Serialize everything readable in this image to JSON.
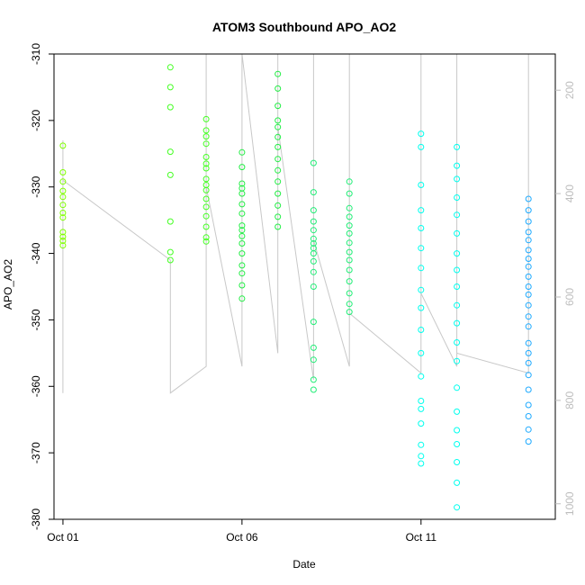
{
  "chart_data": {
    "type": "scatter",
    "title": "ATOM3 Southbound APO_AO2",
    "xlabel": "Date",
    "ylabel": "APO_AO2",
    "x_start": "Sep 30 18:00",
    "x_end": "Oct 14 18:00",
    "xlim": [
      "2016-09-30T18:00",
      "2016-10-14T18:00"
    ],
    "ylim": [
      -380,
      -310
    ],
    "x_ticks": [
      {
        "date": "2016-10-01T00:00",
        "label": "Oct 01"
      },
      {
        "date": "2016-10-06T00:00",
        "label": "Oct 06"
      },
      {
        "date": "2016-10-11T00:00",
        "label": "Oct 11"
      }
    ],
    "y_ticks": [
      -380,
      -370,
      -360,
      -350,
      -340,
      -330,
      -320,
      -310
    ],
    "right_axis": {
      "label": "",
      "ticks": [
        200,
        400,
        600,
        800,
        1000
      ],
      "range_top": 130,
      "range_bottom": 1030,
      "color": "#bdbdbd"
    },
    "grid": false,
    "series": [
      {
        "color": "#7fff00",
        "x": [
          "2016-10-01T00:00",
          "2016-10-01T00:00",
          "2016-10-01T00:00",
          "2016-10-01T00:00",
          "2016-10-01T00:00",
          "2016-10-01T00:00",
          "2016-10-01T00:00",
          "2016-10-01T00:00",
          "2016-10-01T00:00",
          "2016-10-01T00:00",
          "2016-10-01T00:00",
          "2016-10-01T00:00"
        ],
        "y": [
          -323.8,
          -327.8,
          -329.2,
          -330.6,
          -331.5,
          -332.7,
          -333.9,
          -334.6,
          -336.8,
          -337.5,
          -338.1,
          -338.8
        ]
      },
      {
        "color": "#44ff22",
        "x": [
          "2016-10-04T00:00",
          "2016-10-04T00:00",
          "2016-10-04T00:00",
          "2016-10-04T00:00",
          "2016-10-04T00:00",
          "2016-10-04T00:00",
          "2016-10-04T00:00",
          "2016-10-04T00:00",
          "2016-10-05T00:00",
          "2016-10-05T00:00",
          "2016-10-05T00:00",
          "2016-10-05T00:00",
          "2016-10-05T00:00",
          "2016-10-05T00:00",
          "2016-10-05T00:00",
          "2016-10-05T00:00",
          "2016-10-05T00:00",
          "2016-10-05T00:00",
          "2016-10-05T00:00",
          "2016-10-05T00:00",
          "2016-10-05T00:00",
          "2016-10-05T00:00",
          "2016-10-05T00:00",
          "2016-10-05T00:00"
        ],
        "y": [
          -312.0,
          -315.0,
          -318.0,
          -324.7,
          -328.2,
          -335.2,
          -339.8,
          -341.0,
          -319.8,
          -321.5,
          -322.4,
          -323.5,
          -325.5,
          -327.2,
          -328.8,
          -329.7,
          -330.5,
          -331.8,
          -333.0,
          -334.4,
          -336.0,
          -337.6,
          -338.2,
          -326.5
        ]
      },
      {
        "color": "#22ee44",
        "x": [
          "2016-10-06T00:00",
          "2016-10-06T00:00",
          "2016-10-06T00:00",
          "2016-10-06T00:00",
          "2016-10-06T00:00",
          "2016-10-06T00:00",
          "2016-10-06T00:00",
          "2016-10-06T00:00",
          "2016-10-06T00:00",
          "2016-10-06T00:00",
          "2016-10-06T00:00",
          "2016-10-06T00:00",
          "2016-10-06T00:00",
          "2016-10-06T00:00",
          "2016-10-06T00:00",
          "2016-10-06T00:00",
          "2016-10-07T00:00",
          "2016-10-07T00:00",
          "2016-10-07T00:00",
          "2016-10-07T00:00",
          "2016-10-07T00:00",
          "2016-10-07T00:00",
          "2016-10-07T00:00",
          "2016-10-07T00:00",
          "2016-10-07T00:00",
          "2016-10-07T00:00",
          "2016-10-07T00:00",
          "2016-10-07T00:00",
          "2016-10-07T00:00",
          "2016-10-07T00:00"
        ],
        "y": [
          -324.8,
          -327.0,
          -329.5,
          -331.0,
          -332.6,
          -334.0,
          -335.8,
          -337.4,
          -338.5,
          -340.0,
          -341.8,
          -343.0,
          -344.8,
          -346.8,
          -336.5,
          -330.2,
          -313.0,
          -315.2,
          -317.8,
          -320.0,
          -322.5,
          -324.0,
          -325.8,
          -327.5,
          -329.2,
          -331.0,
          -332.8,
          -334.5,
          -336.0,
          -321.0
        ]
      },
      {
        "color": "#22ee77",
        "x": [
          "2016-10-08T00:00",
          "2016-10-08T00:00",
          "2016-10-08T00:00",
          "2016-10-08T00:00",
          "2016-10-08T00:00",
          "2016-10-08T00:00",
          "2016-10-08T00:00",
          "2016-10-08T00:00",
          "2016-10-08T00:00",
          "2016-10-08T00:00",
          "2016-10-08T00:00",
          "2016-10-08T00:00",
          "2016-10-08T00:00",
          "2016-10-08T00:00",
          "2016-10-08T00:00",
          "2016-10-08T00:00",
          "2016-10-08T00:00",
          "2016-10-09T00:00",
          "2016-10-09T00:00",
          "2016-10-09T00:00",
          "2016-10-09T00:00",
          "2016-10-09T00:00",
          "2016-10-09T00:00",
          "2016-10-09T00:00",
          "2016-10-09T00:00",
          "2016-10-09T00:00",
          "2016-10-09T00:00",
          "2016-10-09T00:00",
          "2016-10-09T00:00",
          "2016-10-09T00:00",
          "2016-10-09T00:00"
        ],
        "y": [
          -326.4,
          -330.8,
          -333.5,
          -335.2,
          -336.5,
          -337.8,
          -338.5,
          -339.2,
          -340.0,
          -341.2,
          -342.8,
          -345.0,
          -350.3,
          -354.2,
          -356.0,
          -359.0,
          -360.5,
          -329.2,
          -331.0,
          -333.2,
          -334.5,
          -335.8,
          -337.0,
          -338.4,
          -339.8,
          -341.0,
          -342.5,
          -344.2,
          -346.0,
          -347.6,
          -348.8
        ]
      },
      {
        "color": "#00ffee",
        "x": [
          "2016-10-11T00:00",
          "2016-10-11T00:00",
          "2016-10-11T00:00",
          "2016-10-11T00:00",
          "2016-10-11T00:00",
          "2016-10-11T00:00",
          "2016-10-11T00:00",
          "2016-10-11T00:00",
          "2016-10-11T00:00",
          "2016-10-11T00:00",
          "2016-10-11T00:00",
          "2016-10-11T00:00",
          "2016-10-11T00:00",
          "2016-10-11T00:00",
          "2016-10-11T00:00",
          "2016-10-11T00:00",
          "2016-10-11T00:00",
          "2016-10-11T00:00",
          "2016-10-12T00:00",
          "2016-10-12T00:00",
          "2016-10-12T00:00",
          "2016-10-12T00:00",
          "2016-10-12T00:00",
          "2016-10-12T00:00",
          "2016-10-12T00:00",
          "2016-10-12T00:00",
          "2016-10-12T00:00",
          "2016-10-12T00:00",
          "2016-10-12T00:00",
          "2016-10-12T00:00",
          "2016-10-12T00:00",
          "2016-10-12T00:00",
          "2016-10-12T00:00",
          "2016-10-12T00:00",
          "2016-10-12T00:00",
          "2016-10-12T00:00",
          "2016-10-12T00:00",
          "2016-10-12T00:00"
        ],
        "y": [
          -322.0,
          -324.0,
          -329.7,
          -333.5,
          -336.2,
          -339.2,
          -342.2,
          -345.5,
          -348.2,
          -351.5,
          -355.0,
          -358.5,
          -362.2,
          -363.4,
          -365.6,
          -368.8,
          -370.5,
          -371.6,
          -324.0,
          -326.8,
          -328.8,
          -331.6,
          -334.2,
          -337.0,
          -340.0,
          -342.5,
          -345.0,
          -347.8,
          -350.5,
          -353.4,
          -356.2,
          -360.2,
          -363.8,
          -366.6,
          -368.7,
          -371.4,
          -374.5,
          -378.2
        ]
      },
      {
        "color": "#1eaaff",
        "x": [
          "2016-10-14T00:00",
          "2016-10-14T00:00",
          "2016-10-14T00:00",
          "2016-10-14T00:00",
          "2016-10-14T00:00",
          "2016-10-14T00:00",
          "2016-10-14T00:00",
          "2016-10-14T00:00",
          "2016-10-14T00:00",
          "2016-10-14T00:00",
          "2016-10-14T00:00",
          "2016-10-14T00:00",
          "2016-10-14T00:00",
          "2016-10-14T00:00",
          "2016-10-14T00:00",
          "2016-10-14T00:00",
          "2016-10-14T00:00",
          "2016-10-14T00:00",
          "2016-10-14T00:00",
          "2016-10-14T00:00",
          "2016-10-14T00:00",
          "2016-10-14T00:00",
          "2016-10-14T00:00"
        ],
        "y": [
          -331.8,
          -333.5,
          -335.2,
          -336.8,
          -338.0,
          -339.5,
          -340.8,
          -342.0,
          -343.5,
          -345.0,
          -346.2,
          -347.8,
          -349.5,
          -351.0,
          -353.5,
          -355.0,
          -356.5,
          -358.3,
          -360.5,
          -362.8,
          -364.5,
          -366.5,
          -368.3
        ]
      }
    ],
    "trajectory": {
      "color": "#c8c8c8",
      "x": [
        "2016-10-01T00:00",
        "2016-10-01T00:00",
        "2016-10-01T00:00",
        "2016-10-04T00:00",
        "2016-10-04T00:00",
        "2016-10-05T00:00",
        "2016-10-05T00:00",
        "2016-10-05T00:00",
        "2016-10-06T00:00",
        "2016-10-06T00:00",
        "2016-10-06T00:00",
        "2016-10-07T00:00",
        "2016-10-07T00:00",
        "2016-10-07T00:00",
        "2016-10-08T00:00",
        "2016-10-08T00:00",
        "2016-10-08T00:00",
        "2016-10-09T00:00",
        "2016-10-09T00:00",
        "2016-10-09T00:00",
        "2016-10-11T00:00",
        "2016-10-11T00:00",
        "2016-10-11T00:00",
        "2016-10-12T00:00",
        "2016-10-12T00:00",
        "2016-10-12T00:00",
        "2016-10-14T00:00",
        "2016-10-14T00:00",
        "2016-10-14T00:00"
      ],
      "y": [
        -361.0,
        -323.0,
        -329.0,
        -341.0,
        -361.0,
        -357.0,
        -310.0,
        -330.0,
        -357.0,
        -356.0,
        -310.0,
        -355.0,
        -310.0,
        -321.0,
        -359.0,
        -310.0,
        -338.0,
        -357.0,
        -310.0,
        -349.0,
        -358.0,
        -310.0,
        -346.0,
        -357.0,
        -310.0,
        -355.0,
        -358.0,
        -310.0,
        -343.0
      ]
    }
  }
}
